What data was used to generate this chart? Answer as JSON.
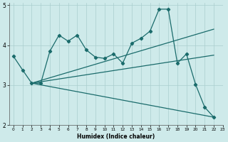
{
  "xlabel": "Humidex (Indice chaleur)",
  "background_color": "#ceeaea",
  "grid_color": "#aacece",
  "line_color": "#1a6b6b",
  "xlim": [
    -0.5,
    23
  ],
  "ylim": [
    2,
    5.05
  ],
  "yticks": [
    2,
    3,
    4,
    5
  ],
  "xticks": [
    0,
    1,
    2,
    3,
    4,
    5,
    6,
    7,
    8,
    9,
    10,
    11,
    12,
    13,
    14,
    15,
    16,
    17,
    18,
    19,
    20,
    21,
    22,
    23
  ],
  "wavy_x": [
    0,
    1,
    2,
    3,
    4,
    5,
    6,
    7,
    8,
    9,
    10,
    11,
    12,
    13,
    14,
    15,
    16,
    17,
    18,
    19,
    20,
    21,
    22
  ],
  "wavy_y": [
    3.72,
    3.38,
    3.05,
    3.05,
    3.85,
    4.25,
    4.1,
    4.25,
    3.88,
    3.7,
    3.67,
    3.78,
    3.55,
    4.05,
    4.17,
    4.35,
    4.9,
    4.9,
    3.55,
    3.78,
    3.02,
    2.45,
    2.2
  ],
  "reg_origin_x": 2,
  "reg_origin_y": 3.05,
  "reg1_end_x": 22,
  "reg1_end_y": 4.4,
  "reg2_end_x": 22,
  "reg2_end_y": 3.75,
  "reg3_end_x": 22,
  "reg3_end_y": 2.2
}
